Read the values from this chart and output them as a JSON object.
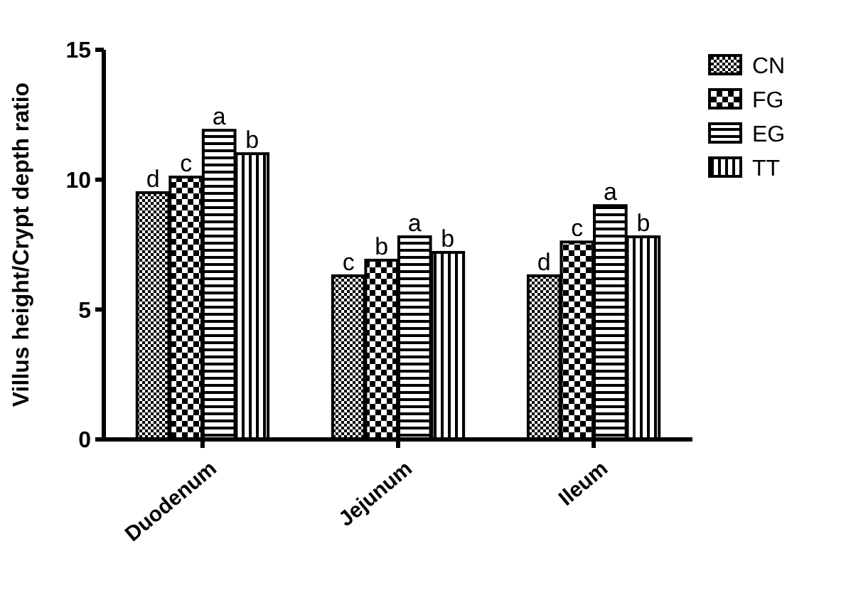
{
  "chart_data": {
    "type": "bar",
    "ylabel": "Villus height/Crypt depth ratio",
    "categories": [
      "Duodenum",
      "Jejunum",
      "Ileum"
    ],
    "series": [
      {
        "name": "CN",
        "color": "#000000",
        "values": [
          9.5,
          6.3,
          6.3
        ],
        "value_labels": [
          "d",
          "c",
          "d"
        ]
      },
      {
        "name": "FG",
        "color": "#000000",
        "values": [
          10.1,
          6.9,
          7.6
        ],
        "value_labels": [
          "c",
          "b",
          "c"
        ]
      },
      {
        "name": "EG",
        "color": "#000000",
        "values": [
          11.9,
          7.8,
          9.0
        ],
        "value_labels": [
          "a",
          "a",
          "a"
        ]
      },
      {
        "name": "TT",
        "color": "#000000",
        "values": [
          11.0,
          7.2,
          7.8
        ],
        "value_labels": [
          "b",
          "b",
          "b"
        ]
      }
    ],
    "ylim": [
      0,
      15
    ],
    "yticks": [
      0,
      5,
      10,
      15
    ],
    "grid": false,
    "legend": "top right"
  }
}
